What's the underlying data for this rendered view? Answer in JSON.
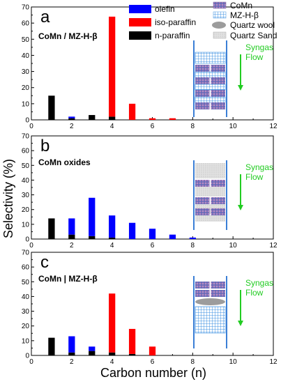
{
  "figure": {
    "ylabel": "Selectivity (%)",
    "xlabel": "Carbon number (n)",
    "legend": {
      "olefin": "olefin",
      "iso": "iso-paraffin",
      "n": "n-paraffin",
      "comn": "CoMn",
      "mz": "MZ-H-β",
      "quartz_wool": "Quartz wool",
      "quartz_sand": "Quartz Sand"
    },
    "flow_label_1": "Syngas",
    "flow_label_2": "Flow",
    "colors": {
      "olefin": "#0000ff",
      "iso": "#ff0000",
      "n": "#000000",
      "flow": "#22cc22",
      "reactor": "#3b7fd6"
    }
  },
  "chart_data": [
    {
      "type": "bar",
      "stacked": true,
      "letter": "a",
      "title": "CoMn / MZ-H-β",
      "x": [
        1,
        2,
        3,
        4,
        5,
        6,
        7
      ],
      "xlim": [
        0,
        12
      ],
      "ylim": [
        0,
        70
      ],
      "xticks": [
        0,
        2,
        4,
        6,
        8,
        10,
        12
      ],
      "yticks": [
        0,
        10,
        20,
        30,
        40,
        50,
        60,
        70
      ],
      "series": [
        {
          "name": "n-paraffin",
          "values": [
            15,
            1,
            3,
            2,
            0,
            0,
            0
          ]
        },
        {
          "name": "olefin",
          "values": [
            0,
            1,
            0,
            0,
            0,
            0,
            0
          ]
        },
        {
          "name": "iso-paraffin",
          "values": [
            0,
            0,
            0,
            62,
            10,
            1,
            1
          ]
        }
      ]
    },
    {
      "type": "bar",
      "stacked": true,
      "letter": "b",
      "title": "CoMn oxides",
      "x": [
        1,
        2,
        3,
        4,
        5,
        6,
        7,
        8
      ],
      "xlim": [
        0,
        12
      ],
      "ylim": [
        0,
        70
      ],
      "xticks": [
        0,
        2,
        4,
        6,
        8,
        10,
        12
      ],
      "yticks": [
        0,
        10,
        20,
        30,
        40,
        50,
        60,
        70
      ],
      "series": [
        {
          "name": "n-paraffin",
          "values": [
            14,
            3,
            2,
            1,
            0,
            0,
            0,
            0
          ]
        },
        {
          "name": "olefin",
          "values": [
            0,
            11,
            26,
            15,
            11,
            7,
            3,
            1
          ]
        },
        {
          "name": "iso-paraffin",
          "values": [
            0,
            0,
            0,
            0,
            0,
            0,
            0,
            0
          ]
        }
      ]
    },
    {
      "type": "bar",
      "stacked": true,
      "letter": "c",
      "title": "CoMn | MZ-H-β",
      "x": [
        1,
        2,
        3,
        4,
        5,
        6
      ],
      "xlim": [
        0,
        12
      ],
      "ylim": [
        0,
        70
      ],
      "xticks": [
        0,
        2,
        4,
        6,
        8,
        10,
        12
      ],
      "yticks": [
        0,
        10,
        20,
        30,
        40,
        50,
        60,
        70
      ],
      "series": [
        {
          "name": "n-paraffin",
          "values": [
            12,
            2,
            3,
            2,
            1,
            0
          ]
        },
        {
          "name": "olefin",
          "values": [
            0,
            11,
            3,
            0,
            0,
            0
          ]
        },
        {
          "name": "iso-paraffin",
          "values": [
            0,
            0,
            0,
            40,
            17,
            6
          ]
        }
      ]
    }
  ]
}
